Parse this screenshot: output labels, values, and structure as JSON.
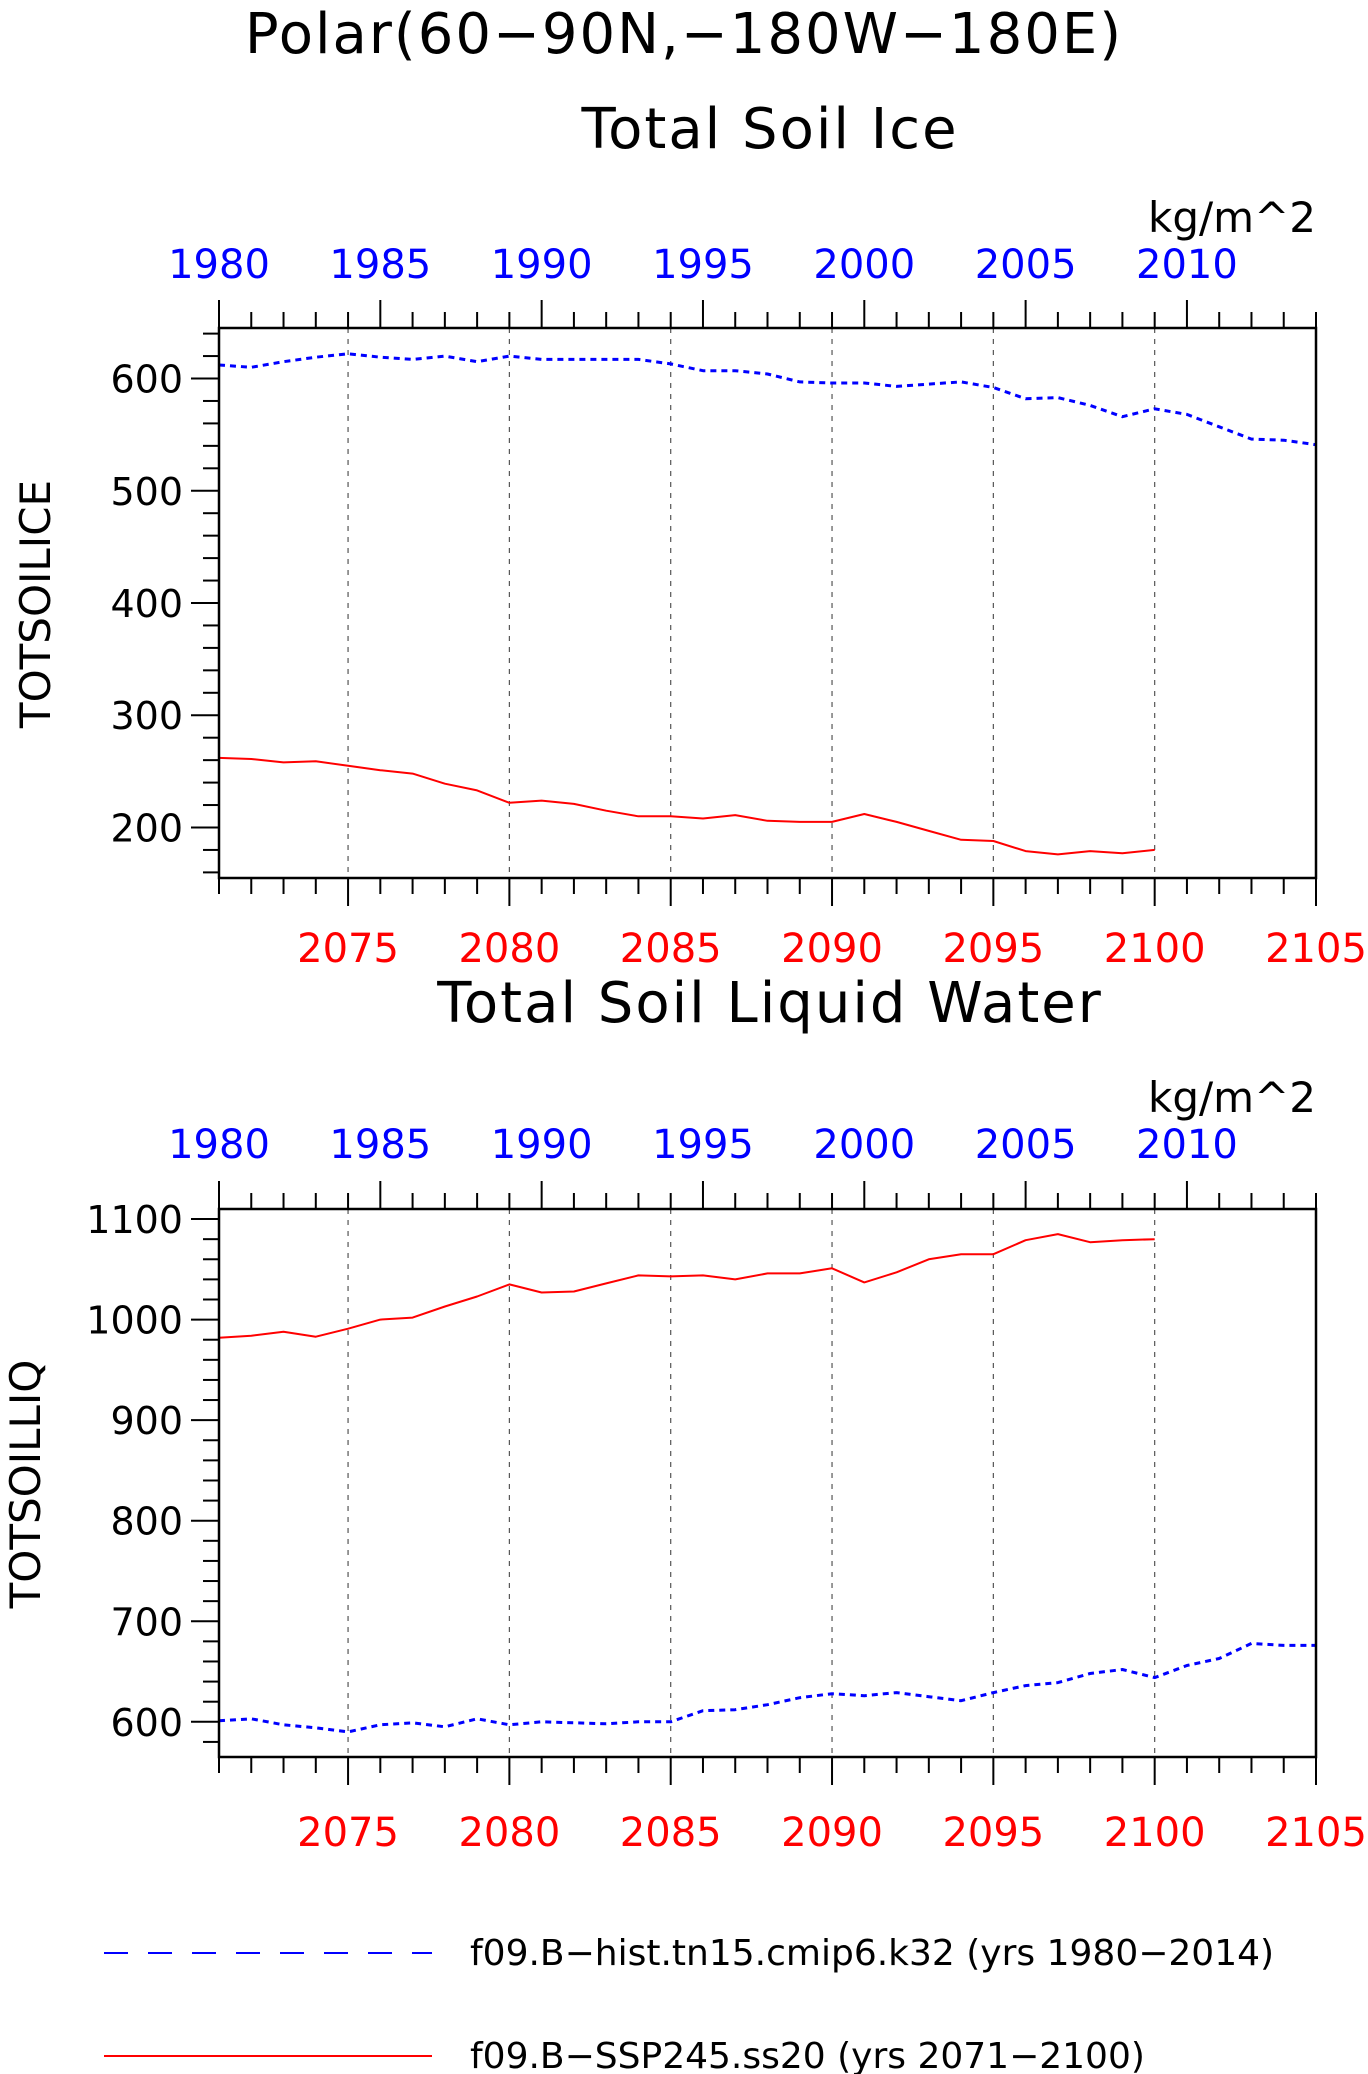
{
  "figure": {
    "title": "Polar(60−90N,−180W−180E)"
  },
  "legend": {
    "placement": "bottom",
    "entries": [
      {
        "label": "f09.B−hist.tn15.cmip6.k32 (yrs 1980−2014)",
        "color": "#0000ff",
        "style": "dashed"
      },
      {
        "label": "f09.B−SSP245.ss20 (yrs 2071−2100)",
        "color": "#ff0000",
        "style": "solid"
      }
    ]
  },
  "chart_data": [
    {
      "type": "line",
      "title": "Total Soil Ice",
      "ylabel": "TOTSOILICE",
      "units": "kg/m^2",
      "ylim": [
        155,
        645
      ],
      "yticks": [
        200,
        300,
        400,
        500,
        600
      ],
      "top_axis": {
        "color": "#0000ff",
        "xlim": [
          1980,
          2014
        ],
        "ticks": [
          1980,
          1985,
          1990,
          1995,
          2000,
          2005,
          2010
        ]
      },
      "bottom_axis": {
        "color": "#ff0000",
        "xlim": [
          2071,
          2105
        ],
        "ticks": [
          2075,
          2080,
          2085,
          2090,
          2095,
          2100,
          2105
        ]
      },
      "grid": "vertical dashed at bottom-axis ticks",
      "series": [
        {
          "name": "f09.B−hist.tn15.cmip6.k32",
          "axis": "top",
          "color": "#0000ff",
          "style": "dashed",
          "x": [
            1980,
            1981,
            1982,
            1983,
            1984,
            1985,
            1986,
            1987,
            1988,
            1989,
            1990,
            1991,
            1992,
            1993,
            1994,
            1995,
            1996,
            1997,
            1998,
            1999,
            2000,
            2001,
            2002,
            2003,
            2004,
            2005,
            2006,
            2007,
            2008,
            2009,
            2010,
            2011,
            2012,
            2013,
            2014
          ],
          "values": [
            612,
            610,
            615,
            619,
            622,
            619,
            617,
            620,
            615,
            620,
            617,
            617,
            617,
            617,
            613,
            607,
            607,
            604,
            597,
            596,
            596,
            593,
            595,
            597,
            592,
            582,
            583,
            576,
            566,
            573,
            568,
            557,
            546,
            545,
            541
          ]
        },
        {
          "name": "f09.B−SSP245.ss20",
          "axis": "bottom",
          "color": "#ff0000",
          "style": "solid",
          "x": [
            2071,
            2072,
            2073,
            2074,
            2075,
            2076,
            2077,
            2078,
            2079,
            2080,
            2081,
            2082,
            2083,
            2084,
            2085,
            2086,
            2087,
            2088,
            2089,
            2090,
            2091,
            2092,
            2093,
            2094,
            2095,
            2096,
            2097,
            2098,
            2099,
            2100
          ],
          "values": [
            262,
            261,
            258,
            259,
            255,
            251,
            248,
            239,
            233,
            222,
            224,
            221,
            215,
            210,
            210,
            208,
            211,
            206,
            205,
            205,
            212,
            205,
            197,
            189,
            188,
            179,
            176,
            179,
            177,
            180
          ]
        }
      ]
    },
    {
      "type": "line",
      "title": "Total Soil Liquid Water",
      "ylabel": "TOTSOILLIQ",
      "units": "kg/m^2",
      "ylim": [
        565,
        1110
      ],
      "yticks": [
        600,
        700,
        800,
        900,
        1000,
        1100
      ],
      "top_axis": {
        "color": "#0000ff",
        "xlim": [
          1980,
          2014
        ],
        "ticks": [
          1980,
          1985,
          1990,
          1995,
          2000,
          2005,
          2010
        ]
      },
      "bottom_axis": {
        "color": "#ff0000",
        "xlim": [
          2071,
          2105
        ],
        "ticks": [
          2075,
          2080,
          2085,
          2090,
          2095,
          2100,
          2105
        ]
      },
      "grid": "vertical dashed at bottom-axis ticks",
      "series": [
        {
          "name": "f09.B−hist.tn15.cmip6.k32",
          "axis": "top",
          "color": "#0000ff",
          "style": "dashed",
          "x": [
            1980,
            1981,
            1982,
            1983,
            1984,
            1985,
            1986,
            1987,
            1988,
            1989,
            1990,
            1991,
            1992,
            1993,
            1994,
            1995,
            1996,
            1997,
            1998,
            1999,
            2000,
            2001,
            2002,
            2003,
            2004,
            2005,
            2006,
            2007,
            2008,
            2009,
            2010,
            2011,
            2012,
            2013,
            2014
          ],
          "values": [
            601,
            603,
            597,
            594,
            590,
            597,
            599,
            595,
            603,
            597,
            600,
            599,
            598,
            600,
            600,
            611,
            612,
            617,
            624,
            628,
            626,
            629,
            625,
            621,
            629,
            636,
            639,
            648,
            652,
            644,
            656,
            663,
            678,
            676,
            676
          ]
        },
        {
          "name": "f09.B−SSP245.ss20",
          "axis": "bottom",
          "color": "#ff0000",
          "style": "solid",
          "x": [
            2071,
            2072,
            2073,
            2074,
            2075,
            2076,
            2077,
            2078,
            2079,
            2080,
            2081,
            2082,
            2083,
            2084,
            2085,
            2086,
            2087,
            2088,
            2089,
            2090,
            2091,
            2092,
            2093,
            2094,
            2095,
            2096,
            2097,
            2098,
            2099,
            2100
          ],
          "values": [
            982,
            984,
            988,
            983,
            991,
            1000,
            1002,
            1013,
            1023,
            1035,
            1027,
            1028,
            1036,
            1044,
            1043,
            1044,
            1040,
            1046,
            1046,
            1051,
            1037,
            1047,
            1060,
            1065,
            1065,
            1079,
            1085,
            1077,
            1079,
            1080
          ]
        }
      ]
    }
  ]
}
